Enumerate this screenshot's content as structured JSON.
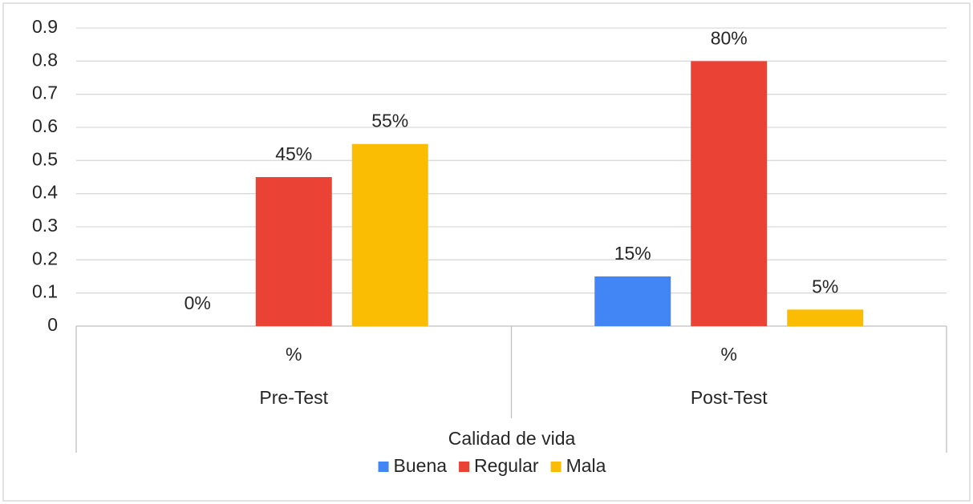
{
  "chart_data": {
    "type": "bar",
    "categories": [
      "%",
      "%"
    ],
    "category_groups": [
      "Pre-Test",
      "Post-Test"
    ],
    "x_label": "Calidad de vida",
    "series": [
      {
        "name": "Buena",
        "color": "#4285f4",
        "values": [
          0,
          0.15
        ],
        "value_labels": [
          "0%",
          "15%"
        ]
      },
      {
        "name": "Regular",
        "color": "#ea4335",
        "values": [
          0.45,
          0.8
        ],
        "value_labels": [
          "45%",
          "80%"
        ]
      },
      {
        "name": "Mala",
        "color": "#fbbc04",
        "values": [
          0.55,
          0.05
        ],
        "value_labels": [
          "55%",
          "5%"
        ]
      }
    ],
    "ylim": [
      0,
      0.9
    ],
    "yticks": [
      0,
      0.1,
      0.2,
      0.3,
      0.4,
      0.5,
      0.6,
      0.7,
      0.8,
      0.9
    ],
    "grid": true,
    "legend": "bottom"
  }
}
